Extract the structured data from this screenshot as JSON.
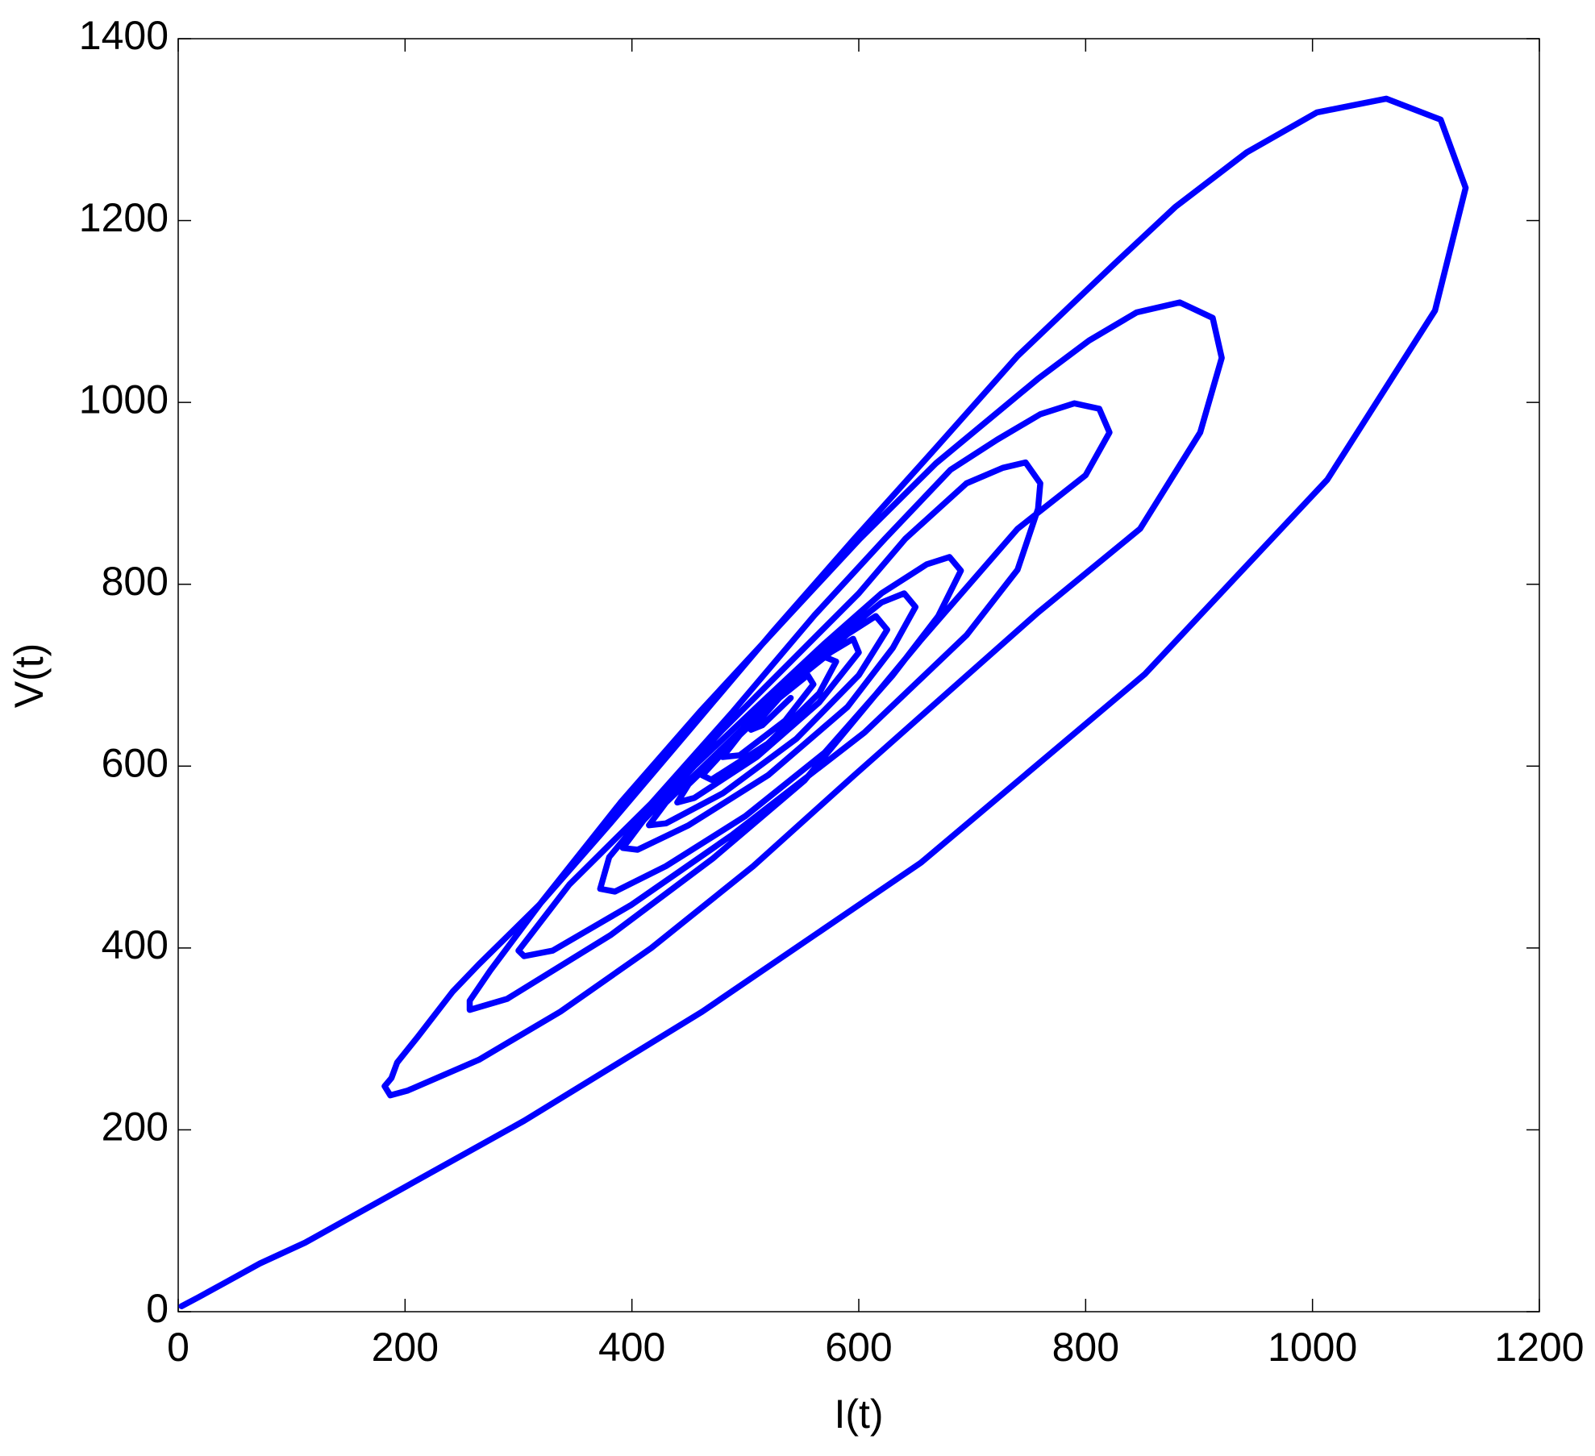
{
  "chart_data": {
    "type": "line",
    "x_label": "I(t)",
    "y_label": "V(t)",
    "x": [
      3,
      18,
      40,
      72,
      112,
      305,
      462,
      655,
      852,
      1013,
      1108,
      1135,
      1113,
      1065,
      1004,
      942,
      879,
      825,
      740,
      668,
      596,
      525,
      453,
      381,
      318,
      265,
      242,
      211,
      193,
      188,
      182,
      187,
      202,
      265,
      337,
      417,
      507,
      596,
      758,
      848,
      901,
      920,
      912,
      883,
      845,
      803,
      758,
      668,
      601,
      534,
      460,
      390,
      320,
      275,
      257,
      257,
      290,
      381,
      471,
      552,
      655,
      740,
      800,
      821,
      812,
      790,
      760,
      722,
      681,
      623,
      561,
      489,
      417,
      345,
      300,
      305,
      330,
      399,
      489,
      605,
      695,
      740,
      758,
      760,
      747,
      727,
      695,
      641,
      600,
      540,
      480,
      420,
      380,
      372,
      385,
      430,
      500,
      570,
      630,
      670,
      690,
      680,
      660,
      620,
      570,
      510,
      455,
      410,
      392,
      405,
      450,
      520,
      590,
      630,
      650,
      640,
      620,
      580,
      530,
      480,
      430,
      415,
      430,
      480,
      545,
      600,
      625,
      615,
      590,
      550,
      500,
      450,
      440,
      455,
      510,
      565,
      600,
      595,
      575,
      540,
      495,
      462,
      470,
      520,
      565,
      580,
      570,
      545,
      505,
      480,
      495,
      535,
      560,
      555,
      530,
      505,
      515,
      540
    ],
    "series": [
      {
        "color": "#0000ff",
        "values": [
          6,
          16,
          31,
          53,
          76,
          210,
          330,
          494,
          701,
          915,
          1101,
          1236,
          1311,
          1334,
          1319,
          1275,
          1215,
          1152,
          1051,
          950,
          850,
          749,
          643,
          537,
          447,
          382,
          352,
          302,
          274,
          257,
          248,
          238,
          243,
          277,
          330,
          400,
          490,
          590,
          769,
          861,
          967,
          1049,
          1093,
          1110,
          1099,
          1068,
          1026,
          933,
          850,
          760,
          660,
          560,
          450,
          375,
          342,
          332,
          344,
          414,
          498,
          584,
          739,
          861,
          920,
          967,
          993,
          999,
          987,
          959,
          926,
          850,
          766,
          660,
          559,
          470,
          397,
          391,
          397,
          447,
          525,
          637,
          744,
          816,
          883,
          911,
          934,
          928,
          911,
          850,
          790,
          715,
          640,
          560,
          500,
          465,
          462,
          490,
          545,
          615,
          700,
          765,
          815,
          830,
          822,
          790,
          735,
          665,
          600,
          540,
          510,
          508,
          535,
          590,
          665,
          730,
          775,
          790,
          780,
          740,
          680,
          620,
          560,
          535,
          537,
          570,
          630,
          700,
          750,
          765,
          745,
          700,
          640,
          580,
          560,
          565,
          610,
          670,
          725,
          740,
          725,
          690,
          635,
          590,
          585,
          625,
          680,
          715,
          720,
          695,
          650,
          610,
          612,
          650,
          690,
          700,
          675,
          640,
          645,
          675
        ]
      }
    ],
    "xlim": [
      0,
      1200
    ],
    "xticks": [
      0,
      200,
      400,
      600,
      800,
      1000,
      1200
    ],
    "ylim": [
      0,
      1400
    ],
    "yticks": [
      0,
      200,
      400,
      600,
      800,
      1000,
      1200,
      1400
    ],
    "grid": false
  }
}
